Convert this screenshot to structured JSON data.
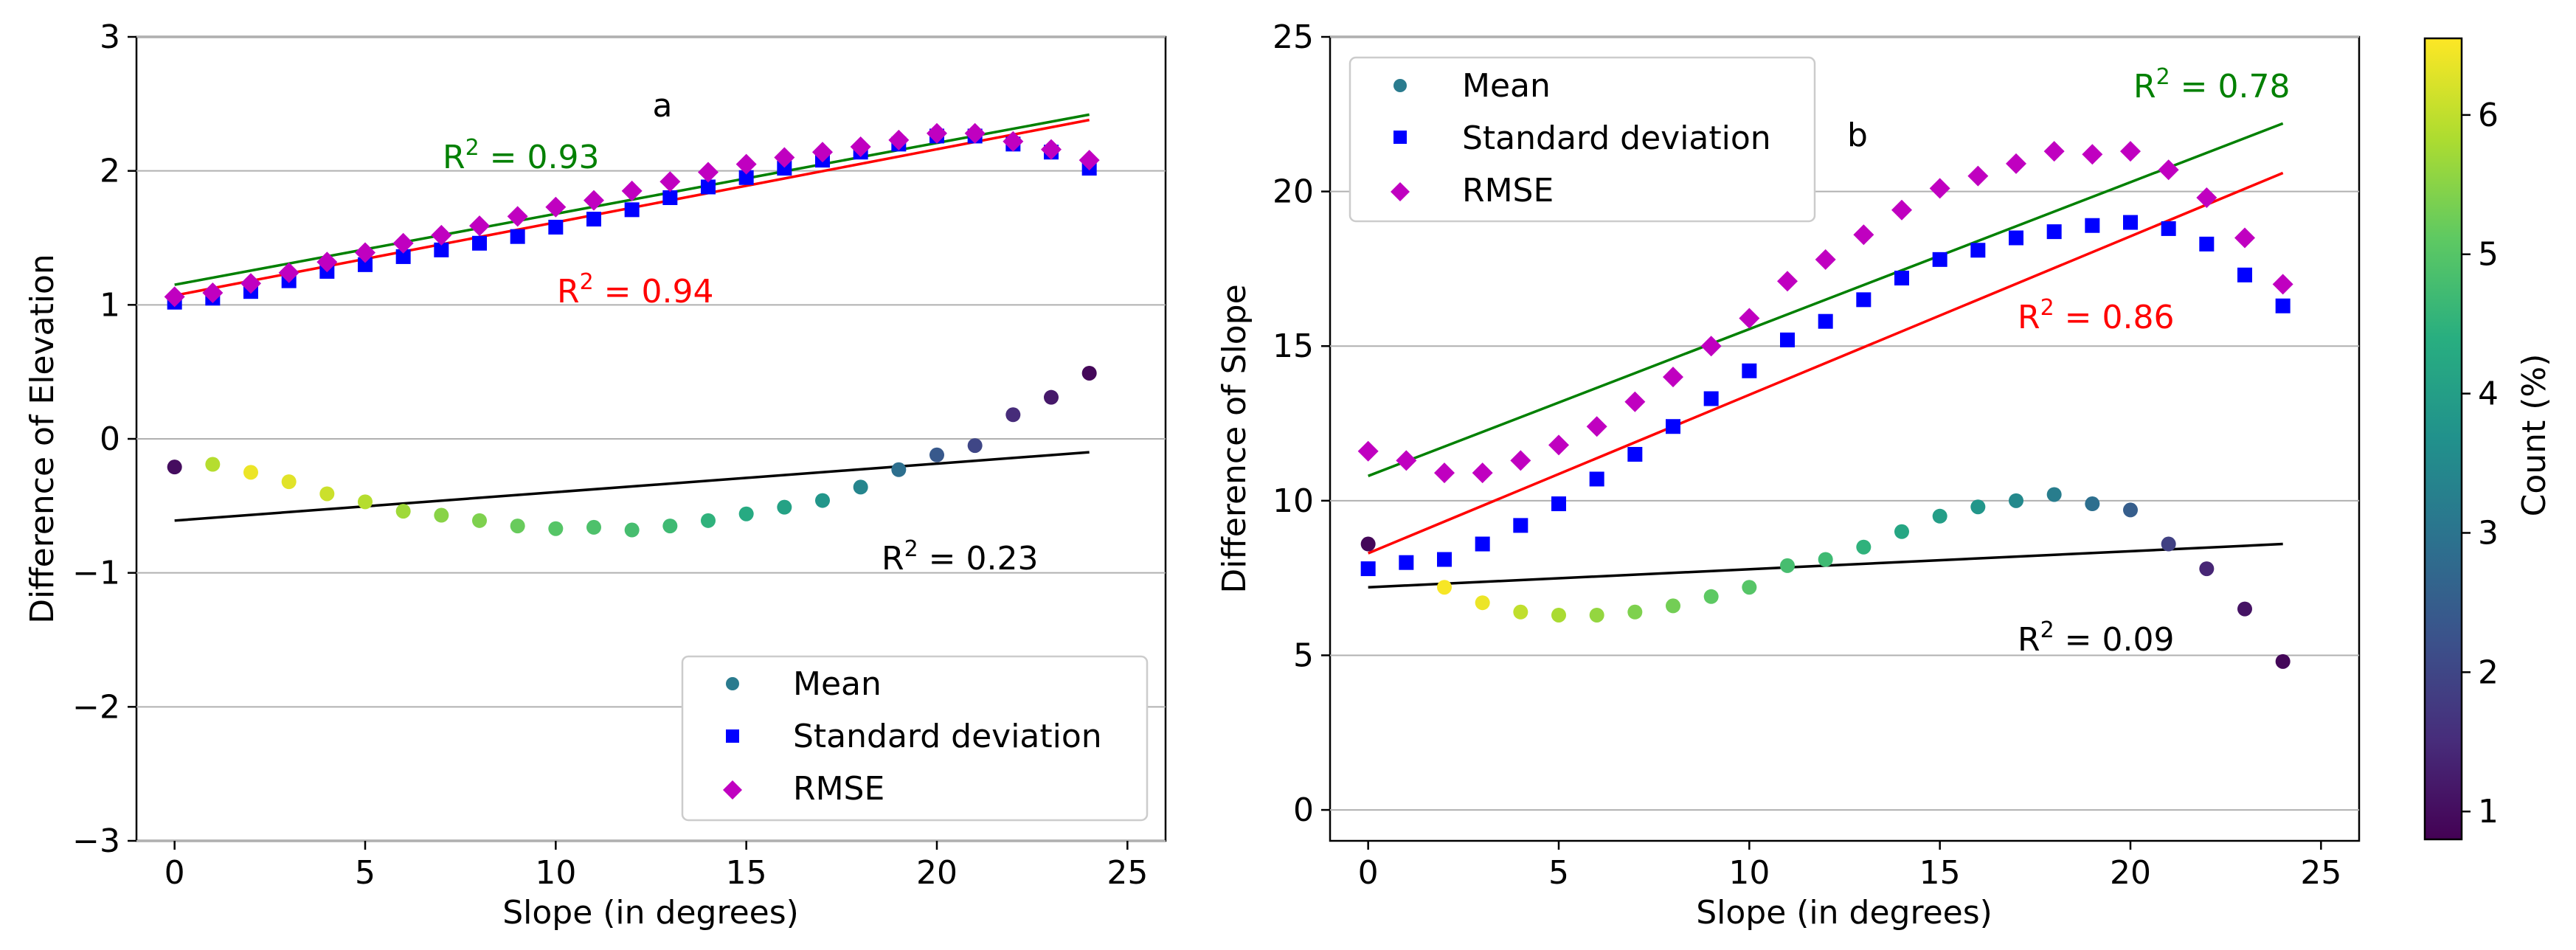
{
  "chart_data": [
    {
      "type": "scatter",
      "panel_label": "a",
      "xlabel": "Slope (in degrees)",
      "ylabel": "Difference of Elevation",
      "xlim": [
        -1,
        26
      ],
      "ylim": [
        -3,
        3
      ],
      "xticks": [
        0,
        5,
        10,
        15,
        20,
        25
      ],
      "yticks": [
        -3,
        -2,
        -1,
        0,
        1,
        2,
        3
      ],
      "ytick_labels": [
        "−3",
        "−2",
        "−1",
        "0",
        "1",
        "2",
        "3"
      ],
      "grid": "horizontal",
      "legend_position": "lower-right",
      "x": [
        0,
        1,
        2,
        3,
        4,
        5,
        6,
        7,
        8,
        9,
        10,
        11,
        12,
        13,
        14,
        15,
        16,
        17,
        18,
        19,
        20,
        21,
        22,
        23,
        24
      ],
      "series": [
        {
          "name": "Mean",
          "marker": "circle",
          "color_by": "count",
          "values": [
            -0.21,
            -0.19,
            -0.25,
            -0.32,
            -0.41,
            -0.47,
            -0.54,
            -0.57,
            -0.61,
            -0.65,
            -0.67,
            -0.66,
            -0.68,
            -0.65,
            -0.61,
            -0.56,
            -0.51,
            -0.46,
            -0.36,
            -0.23,
            -0.12,
            -0.05,
            0.18,
            0.31,
            0.49
          ],
          "count": [
            1.0,
            5.9,
            6.4,
            6.3,
            6.1,
            5.9,
            5.7,
            5.5,
            5.4,
            5.2,
            5.0,
            4.9,
            4.8,
            4.7,
            4.5,
            4.3,
            4.1,
            3.8,
            3.4,
            2.9,
            2.4,
            2.0,
            1.5,
            1.2,
            0.9
          ]
        },
        {
          "name": "Standard deviation",
          "marker": "square",
          "color": "#0000ff",
          "values": [
            1.02,
            1.05,
            1.1,
            1.18,
            1.25,
            1.3,
            1.36,
            1.41,
            1.46,
            1.51,
            1.58,
            1.64,
            1.71,
            1.8,
            1.88,
            1.95,
            2.02,
            2.08,
            2.14,
            2.2,
            2.26,
            2.26,
            2.2,
            2.14,
            2.02
          ]
        },
        {
          "name": "RMSE",
          "marker": "diamond",
          "color": "#c000c0",
          "values": [
            1.06,
            1.09,
            1.16,
            1.24,
            1.32,
            1.39,
            1.46,
            1.52,
            1.59,
            1.66,
            1.73,
            1.78,
            1.85,
            1.92,
            1.99,
            2.05,
            2.1,
            2.14,
            2.18,
            2.23,
            2.28,
            2.28,
            2.22,
            2.16,
            2.08
          ]
        }
      ],
      "trendlines": [
        {
          "series": "RMSE",
          "color": "#008000",
          "x": [
            0,
            24
          ],
          "y": [
            1.15,
            2.42
          ],
          "r2_label": "R",
          "r2_text": " = 0.93"
        },
        {
          "series": "Standard deviation",
          "color": "#ff0000",
          "x": [
            0,
            24
          ],
          "y": [
            1.07,
            2.38
          ],
          "r2_label": "R",
          "r2_text": " = 0.94"
        },
        {
          "series": "Mean",
          "color": "#000000",
          "x": [
            0,
            24
          ],
          "y": [
            -0.61,
            -0.1
          ],
          "r2_label": "R",
          "r2_text": " = 0.23"
        }
      ],
      "superscript": "2"
    },
    {
      "type": "scatter",
      "panel_label": "b",
      "xlabel": "Slope (in degrees)",
      "ylabel": "Difference of Slope",
      "xlim": [
        -1,
        26
      ],
      "ylim": [
        -1,
        25
      ],
      "xticks": [
        0,
        5,
        10,
        15,
        20,
        25
      ],
      "yticks": [
        0,
        5,
        10,
        15,
        20,
        25
      ],
      "ytick_labels": [
        "0",
        "5",
        "10",
        "15",
        "20",
        "25"
      ],
      "grid": "horizontal",
      "legend_position": "top-left",
      "x": [
        0,
        1,
        2,
        3,
        4,
        5,
        6,
        7,
        8,
        9,
        10,
        11,
        12,
        13,
        14,
        15,
        16,
        17,
        18,
        19,
        20,
        21,
        22,
        23,
        24
      ],
      "series": [
        {
          "name": "Mean",
          "marker": "circle",
          "color_by": "count",
          "values": [
            8.6,
            null,
            7.2,
            6.7,
            6.4,
            6.3,
            6.3,
            6.4,
            6.6,
            6.9,
            7.2,
            7.9,
            8.1,
            8.5,
            9.0,
            9.5,
            9.8,
            10.0,
            10.2,
            9.9,
            9.7,
            8.6,
            7.8,
            6.5,
            4.8
          ],
          "count": [
            0.9,
            null,
            6.5,
            6.4,
            6.0,
            5.8,
            5.6,
            5.4,
            5.3,
            5.1,
            5.0,
            4.8,
            4.7,
            4.5,
            4.2,
            4.0,
            3.8,
            3.5,
            3.2,
            2.9,
            2.5,
            1.9,
            1.4,
            1.1,
            0.9
          ]
        },
        {
          "name": "Standard deviation",
          "marker": "square",
          "color": "#0000ff",
          "values": [
            7.8,
            8.0,
            8.1,
            8.6,
            9.2,
            9.9,
            10.7,
            11.5,
            12.4,
            13.3,
            14.2,
            15.2,
            15.8,
            16.5,
            17.2,
            17.8,
            18.1,
            18.5,
            18.7,
            18.9,
            19.0,
            18.8,
            18.3,
            17.3,
            16.3
          ]
        },
        {
          "name": "RMSE",
          "marker": "diamond",
          "color": "#c000c0",
          "values": [
            11.6,
            11.3,
            10.9,
            10.9,
            11.3,
            11.8,
            12.4,
            13.2,
            14.0,
            15.0,
            15.9,
            17.1,
            17.8,
            18.6,
            19.4,
            20.1,
            20.5,
            20.9,
            21.3,
            21.2,
            21.3,
            20.7,
            19.8,
            18.5,
            17.0
          ]
        }
      ],
      "trendlines": [
        {
          "series": "RMSE",
          "color": "#008000",
          "x": [
            0,
            24
          ],
          "y": [
            10.8,
            22.2
          ],
          "r2_label": "R",
          "r2_text": " = 0.78"
        },
        {
          "series": "Standard deviation",
          "color": "#ff0000",
          "x": [
            0,
            24
          ],
          "y": [
            8.3,
            20.6
          ],
          "r2_label": "R",
          "r2_text": " = 0.86"
        },
        {
          "series": "Mean",
          "color": "#000000",
          "x": [
            0,
            24
          ],
          "y": [
            7.2,
            8.6
          ],
          "r2_label": "R",
          "r2_text": " = 0.09"
        }
      ],
      "superscript": "2"
    }
  ],
  "colorbar": {
    "label": "Count (%)",
    "colormap": "viridis",
    "min": 0.8,
    "max": 6.55,
    "ticks": [
      1,
      2,
      3,
      4,
      5,
      6
    ],
    "tick_labels": [
      "1",
      "2",
      "3",
      "4",
      "5",
      "6"
    ]
  },
  "colors": {
    "std_marker": "#0000ff",
    "rmse_marker": "#c000c0",
    "rmse_fit": "#008000",
    "std_fit": "#ff0000",
    "mean_fit": "#000000",
    "grid": "#b0b0b0"
  }
}
